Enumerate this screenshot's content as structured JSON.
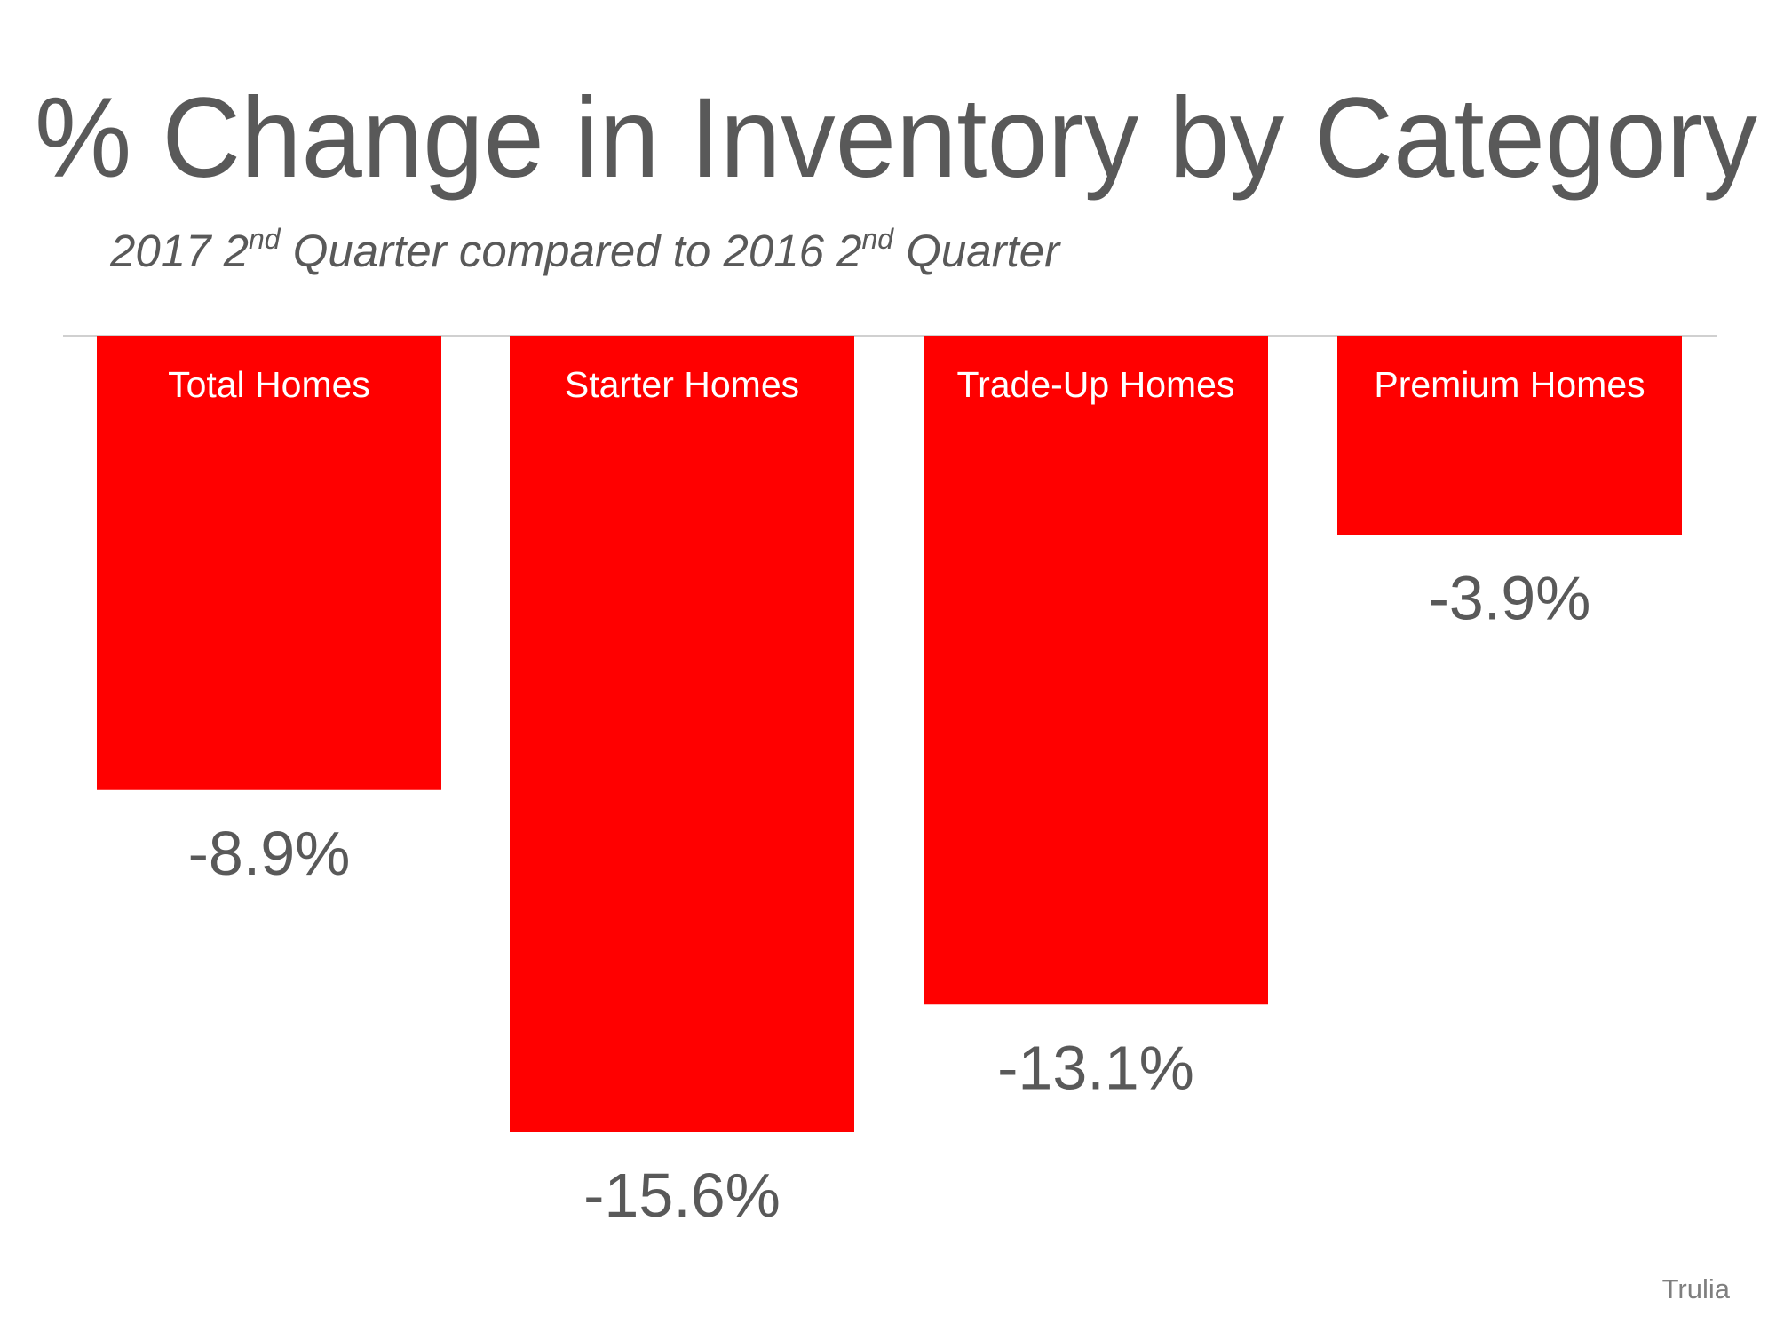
{
  "chart_data": {
    "type": "bar",
    "title": "% Change in Inventory by Category",
    "subtitle": {
      "parts": [
        "2017 2",
        "nd",
        " Quarter compared to 2016 2",
        "nd",
        " Quarter"
      ]
    },
    "categories": [
      "Total Homes",
      "Starter Homes",
      "Trade-Up Homes",
      "Premium Homes"
    ],
    "values": [
      -8.9,
      -15.6,
      -13.1,
      -3.9
    ],
    "value_labels": [
      "-8.9%",
      "-15.6%",
      "-13.1%",
      "-3.9%"
    ],
    "xlabel": "",
    "ylabel": "",
    "ylim": [
      -15.6,
      0
    ],
    "grid": false,
    "bar_color": "#ff0000",
    "source": "Trulia"
  }
}
